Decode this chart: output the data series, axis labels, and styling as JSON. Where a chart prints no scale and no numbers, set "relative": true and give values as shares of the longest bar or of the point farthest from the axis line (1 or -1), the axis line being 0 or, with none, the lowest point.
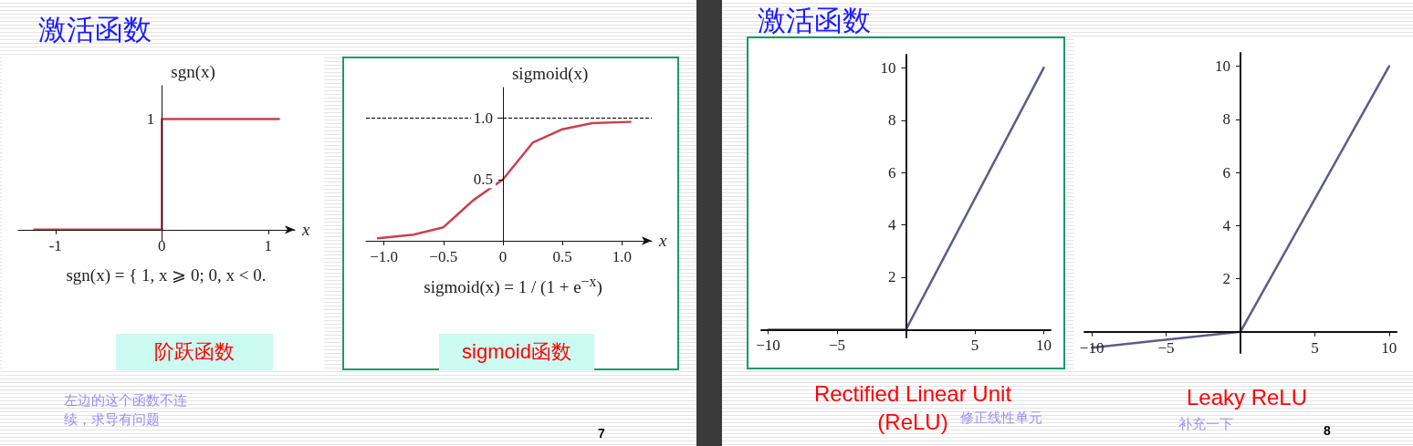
{
  "chart_data": [
    {
      "type": "step",
      "title": "激活函数",
      "subtitle": "阶跃函数",
      "xlabel": "x",
      "ylabel": "sgn(x)",
      "x": [
        -1.2,
        0,
        1.1
      ],
      "values": [
        0,
        1,
        1
      ],
      "color": "#c8414f",
      "marker": "none",
      "relative": true,
      "xlim": [
        -1.35,
        1.25
      ],
      "xticks": [
        -1,
        0,
        1
      ],
      "annotations": [
        "sgn(x) = { 1,  x ⩾ 0;  0,  x < 0.",
        "左边的这个函数不连续，求导有问题",
        "7",
        {
          "text": "1",
          "x": 0,
          "y": 1
        }
      ]
    },
    {
      "type": "line",
      "subtitle": "sigmoid函数",
      "xlabel": "x",
      "ylabel": "sigmoid(x)",
      "x": [
        -1.05,
        -0.75,
        -0.5,
        -0.25,
        0,
        0.25,
        0.5,
        0.75,
        1.07
      ],
      "values": [
        0.02,
        0.05,
        0.11,
        0.33,
        0.5,
        0.8,
        0.91,
        0.96,
        0.97
      ],
      "color": "#c8414f",
      "marker": "none",
      "xlim": [
        -1.15,
        1.25
      ],
      "ylim": [
        -0.03,
        1.25
      ],
      "xticks": [
        {
          "value": -1,
          "label": "−1.0"
        },
        {
          "value": -0.5,
          "label": "−0.5"
        },
        0,
        0.5,
        {
          "value": 1,
          "label": "1.0"
        }
      ],
      "yticks": [
        0.5,
        {
          "value": 1,
          "label": "1.0"
        }
      ],
      "ref_lines": [
        {
          "axis": "y",
          "value": 1,
          "line_style": "dashed",
          "color": "#000000"
        }
      ],
      "annotations": [
        "sigmoid(x) = 1 / (1 + e$^{−x}$)"
      ]
    },
    {
      "type": "line",
      "title": "激活函数",
      "subtitle": "Rectified Linear Unit (ReLU)",
      "x": [
        -10,
        0,
        10
      ],
      "values": [
        0,
        0,
        10
      ],
      "color": "#5c5c8a",
      "marker": "none",
      "xlim": [
        -10.5,
        10.5
      ],
      "ylim": [
        -0.3,
        10.5
      ],
      "xticks": [
        {
          "value": -10,
          "label": "−10"
        },
        {
          "value": -5,
          "label": "−5"
        },
        5,
        10
      ],
      "yticks": [
        2,
        4,
        6,
        8,
        10
      ],
      "annotations": [
        "修正线性单元"
      ]
    },
    {
      "type": "line",
      "subtitle": "Leaky ReLU",
      "x": [
        -10,
        0,
        10
      ],
      "values": [
        -0.6,
        0,
        10
      ],
      "color": "#5c5c8a",
      "marker": "none",
      "xlim": [
        -10.5,
        10.5
      ],
      "ylim": [
        -0.8,
        10.5
      ],
      "xticks": [
        {
          "value": -10,
          "label": "−10"
        },
        {
          "value": -5,
          "label": "−5"
        },
        5,
        10
      ],
      "yticks": [
        2,
        4,
        6,
        8,
        10
      ],
      "annotations": [
        "补充一下",
        "8"
      ]
    }
  ]
}
